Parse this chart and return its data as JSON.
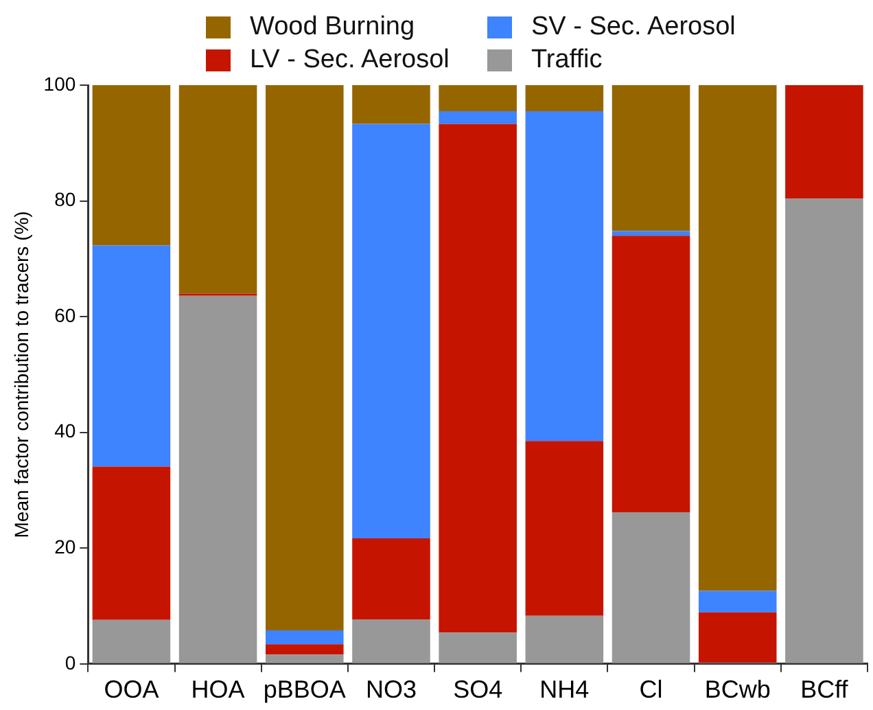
{
  "chart_data": {
    "type": "bar",
    "stacked": true,
    "ylabel": "Mean factor contribution to tracers (%)",
    "categories": [
      "OOA",
      "HOA",
      "pBBOA",
      "NO3",
      "SO4",
      "NH4",
      "Cl",
      "BCwb",
      "BCff"
    ],
    "series": [
      {
        "name": "Traffic",
        "color": "#989898",
        "values": [
          7.6,
          63.6,
          1.6,
          7.7,
          5.4,
          8.3,
          26.2,
          0.2,
          80.4
        ]
      },
      {
        "name": "LV - Sec. Aerosol",
        "color": "#c51500",
        "values": [
          26.5,
          0.4,
          1.8,
          14.0,
          87.9,
          30.2,
          47.8,
          8.7,
          19.6
        ]
      },
      {
        "name": "SV - Sec. Aerosol",
        "color": "#3e83ff",
        "values": [
          38.2,
          0,
          2.4,
          71.6,
          2.2,
          57.0,
          0.8,
          3.7,
          0
        ]
      },
      {
        "name": "Wood Burning",
        "color": "#956600",
        "values": [
          27.7,
          36,
          94.2,
          6.7,
          4.5,
          4.5,
          25.2,
          87.4,
          0
        ]
      }
    ],
    "ylim": [
      0,
      100
    ],
    "yticks": [
      0,
      20,
      40,
      60,
      80,
      100
    ],
    "grid": false,
    "legend": "top"
  }
}
